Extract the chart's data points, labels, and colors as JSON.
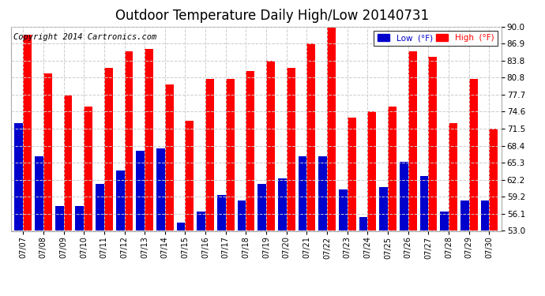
{
  "title": "Outdoor Temperature Daily High/Low 20140731",
  "copyright": "Copyright 2014 Cartronics.com",
  "legend_low": "Low  (°F)",
  "legend_high": "High  (°F)",
  "dates": [
    "07/07",
    "07/08",
    "07/09",
    "07/10",
    "07/11",
    "07/12",
    "07/13",
    "07/14",
    "07/15",
    "07/16",
    "07/17",
    "07/18",
    "07/19",
    "07/20",
    "07/21",
    "07/22",
    "07/23",
    "07/24",
    "07/25",
    "07/26",
    "07/27",
    "07/28",
    "07/29",
    "07/30"
  ],
  "highs": [
    88.5,
    81.5,
    77.5,
    75.5,
    82.5,
    85.5,
    86.0,
    79.5,
    73.0,
    80.5,
    80.5,
    82.0,
    83.8,
    82.5,
    87.0,
    90.5,
    73.5,
    74.6,
    75.5,
    85.5,
    84.5,
    72.5,
    80.5,
    71.5
  ],
  "lows": [
    72.5,
    66.5,
    57.5,
    57.5,
    61.5,
    64.0,
    67.5,
    68.0,
    54.5,
    56.5,
    59.5,
    58.5,
    61.5,
    62.5,
    66.5,
    66.5,
    60.5,
    55.5,
    61.0,
    65.5,
    63.0,
    56.5,
    58.5,
    58.5
  ],
  "ylim_min": 53.0,
  "ylim_max": 90.0,
  "yticks": [
    53.0,
    56.1,
    59.2,
    62.2,
    65.3,
    68.4,
    71.5,
    74.6,
    77.7,
    80.8,
    83.8,
    86.9,
    90.0
  ],
  "high_color": "#ff0000",
  "low_color": "#0000cc",
  "bg_color": "#ffffff",
  "grid_color": "#cccccc",
  "title_fontsize": 12,
  "copyright_fontsize": 7.5,
  "bar_width": 0.42
}
